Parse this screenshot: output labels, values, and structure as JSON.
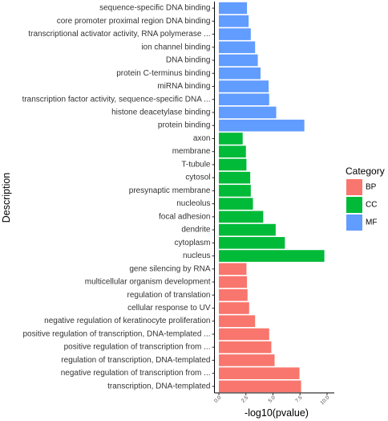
{
  "chart_data": {
    "type": "bar",
    "orientation": "horizontal",
    "xlabel": "-log10(pvalue)",
    "ylabel": "Description",
    "xlim": [
      0,
      10
    ],
    "x_ticks": [
      "0.0",
      "2.5",
      "5.0",
      "7.5",
      "10.0"
    ],
    "grid": false,
    "legend": {
      "title": "Category",
      "position": "right",
      "entries": [
        {
          "name": "BP",
          "color": "#F8766D"
        },
        {
          "name": "CC",
          "color": "#00BA38"
        },
        {
          "name": "MF",
          "color": "#619CFF"
        }
      ]
    },
    "bars": [
      {
        "label": "sequence-specific DNA binding",
        "value": 2.6,
        "category": "MF"
      },
      {
        "label": "core promoter proximal region DNA binding",
        "value": 2.75,
        "category": "MF"
      },
      {
        "label": "transcriptional activator activity, RNA polymerase ...",
        "value": 2.95,
        "category": "MF"
      },
      {
        "label": "ion channel binding",
        "value": 3.35,
        "category": "MF"
      },
      {
        "label": "DNA binding",
        "value": 3.6,
        "category": "MF"
      },
      {
        "label": "protein C-terminus binding",
        "value": 3.85,
        "category": "MF"
      },
      {
        "label": "miRNA binding",
        "value": 4.6,
        "category": "MF"
      },
      {
        "label": "transcription factor activity, sequence-specific DNA ...",
        "value": 4.65,
        "category": "MF"
      },
      {
        "label": "histone deacetylase binding",
        "value": 5.3,
        "category": "MF"
      },
      {
        "label": "protein binding",
        "value": 7.9,
        "category": "MF"
      },
      {
        "label": "axon",
        "value": 2.2,
        "category": "CC"
      },
      {
        "label": "membrane",
        "value": 2.5,
        "category": "CC"
      },
      {
        "label": "T-tubule",
        "value": 2.55,
        "category": "CC"
      },
      {
        "label": "cytosol",
        "value": 2.9,
        "category": "CC"
      },
      {
        "label": "presynaptic membrane",
        "value": 2.95,
        "category": "CC"
      },
      {
        "label": "nucleolus",
        "value": 3.15,
        "category": "CC"
      },
      {
        "label": "focal adhesion",
        "value": 4.1,
        "category": "CC"
      },
      {
        "label": "dendrite",
        "value": 5.25,
        "category": "CC"
      },
      {
        "label": "cytoplasm",
        "value": 6.1,
        "category": "CC"
      },
      {
        "label": "nucleus",
        "value": 9.75,
        "category": "CC"
      },
      {
        "label": "gene silencing by RNA",
        "value": 2.55,
        "category": "BP"
      },
      {
        "label": "multicellular organism development",
        "value": 2.6,
        "category": "BP"
      },
      {
        "label": "regulation of translation",
        "value": 2.65,
        "category": "BP"
      },
      {
        "label": "cellular response to UV",
        "value": 2.8,
        "category": "BP"
      },
      {
        "label": "negative regulation of keratinocyte proliferation",
        "value": 3.35,
        "category": "BP"
      },
      {
        "label": "positive regulation of transcription, DNA-templated ...",
        "value": 4.65,
        "category": "BP"
      },
      {
        "label": "positive regulation of transcription from ...",
        "value": 4.85,
        "category": "BP"
      },
      {
        "label": "regulation of transcription, DNA-templated",
        "value": 5.15,
        "category": "BP"
      },
      {
        "label": "negative regulation of transcription from ...",
        "value": 7.45,
        "category": "BP"
      },
      {
        "label": "transcription, DNA-templated",
        "value": 7.6,
        "category": "BP"
      }
    ]
  }
}
